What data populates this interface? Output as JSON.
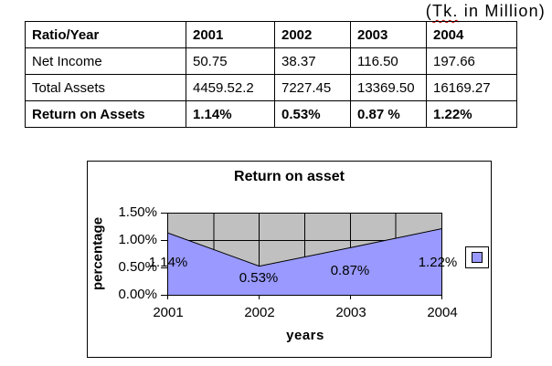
{
  "note": {
    "open": "(",
    "word": "Tk.",
    "rest": " in Million)"
  },
  "table": {
    "columns": [
      "Ratio/Year",
      "2001",
      "2002",
      "2003",
      "2004"
    ],
    "rows": [
      {
        "label": "Net Income",
        "values": [
          "50.75",
          "38.37",
          "116.50",
          "197.66"
        ]
      },
      {
        "label": "Total Assets",
        "values": [
          "4459.52.2",
          "7227.45",
          "13369.50",
          "16169.27"
        ]
      },
      {
        "label": "Return on Assets",
        "values": [
          "1.14%",
          "0.53%",
          "0.87 %",
          "1.22%"
        ]
      }
    ]
  },
  "chart_data": {
    "type": "area",
    "title": "Return on asset",
    "xlabel": "years",
    "ylabel": "percentage",
    "categories": [
      "2001",
      "2002",
      "2003",
      "2004"
    ],
    "values": [
      1.14,
      0.53,
      0.87,
      1.22
    ],
    "data_labels": [
      "1.14%",
      "0.53%",
      "0.87%",
      "1.22%"
    ],
    "y_ticks_top_down": [
      "1.50%",
      "1.00%",
      "0.50%",
      "0.00%"
    ],
    "ylim": [
      0,
      1.5
    ],
    "grid": "on",
    "legend_position": "right",
    "colors": {
      "area_fill": "#9999FF",
      "area_outline": "#000000",
      "plot_bg": "#C0C0C0",
      "gridline": "#000000",
      "legend_marker": "#9999FF"
    }
  }
}
